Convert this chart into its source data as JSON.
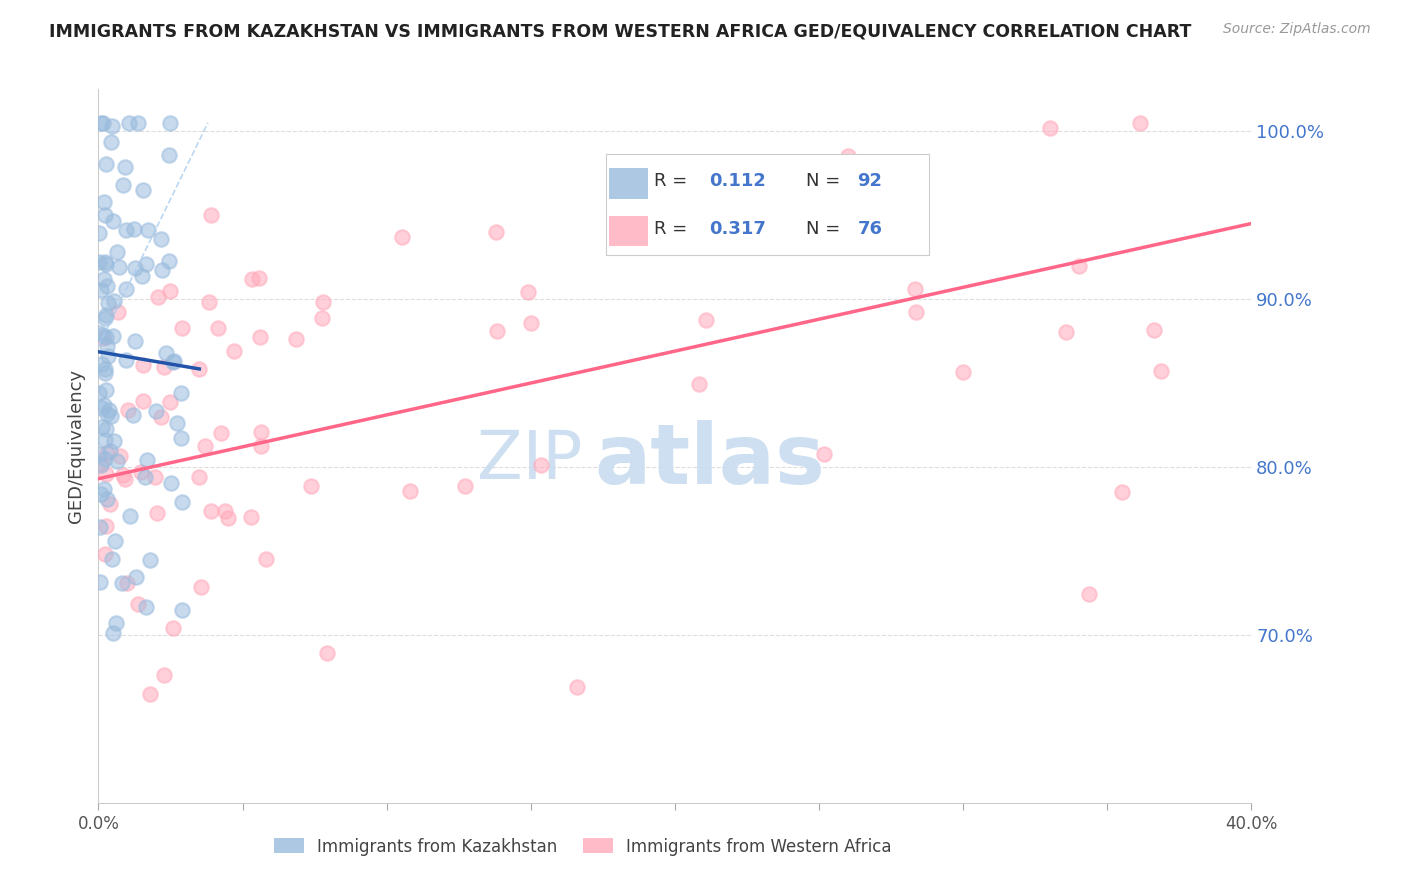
{
  "title": "IMMIGRANTS FROM KAZAKHSTAN VS IMMIGRANTS FROM WESTERN AFRICA GED/EQUIVALENCY CORRELATION CHART",
  "source": "Source: ZipAtlas.com",
  "ylabel": "GED/Equivalency",
  "y_ticks": [
    0.7,
    0.8,
    0.9,
    1.0
  ],
  "y_tick_labels": [
    "70.0%",
    "80.0%",
    "90.0%",
    "100.0%"
  ],
  "x_tick_labels": [
    "0.0%",
    "",
    "",
    "",
    "",
    "",
    "",
    "",
    "40.0%"
  ],
  "legend_blue_label": "Immigrants from Kazakhstan",
  "legend_pink_label": "Immigrants from Western Africa",
  "R_blue": 0.112,
  "N_blue": 92,
  "R_pink": 0.317,
  "N_pink": 76,
  "blue_color": "#99BBDD",
  "pink_color": "#FFAABB",
  "blue_line_color": "#2255AA",
  "pink_line_color": "#FF6688",
  "blue_dashed_color": "#AACCEE",
  "watermark_zip": "ZIP",
  "watermark_atlas": "atlas",
  "text_color_blue": "#4477CC",
  "text_color_dark": "#222222"
}
